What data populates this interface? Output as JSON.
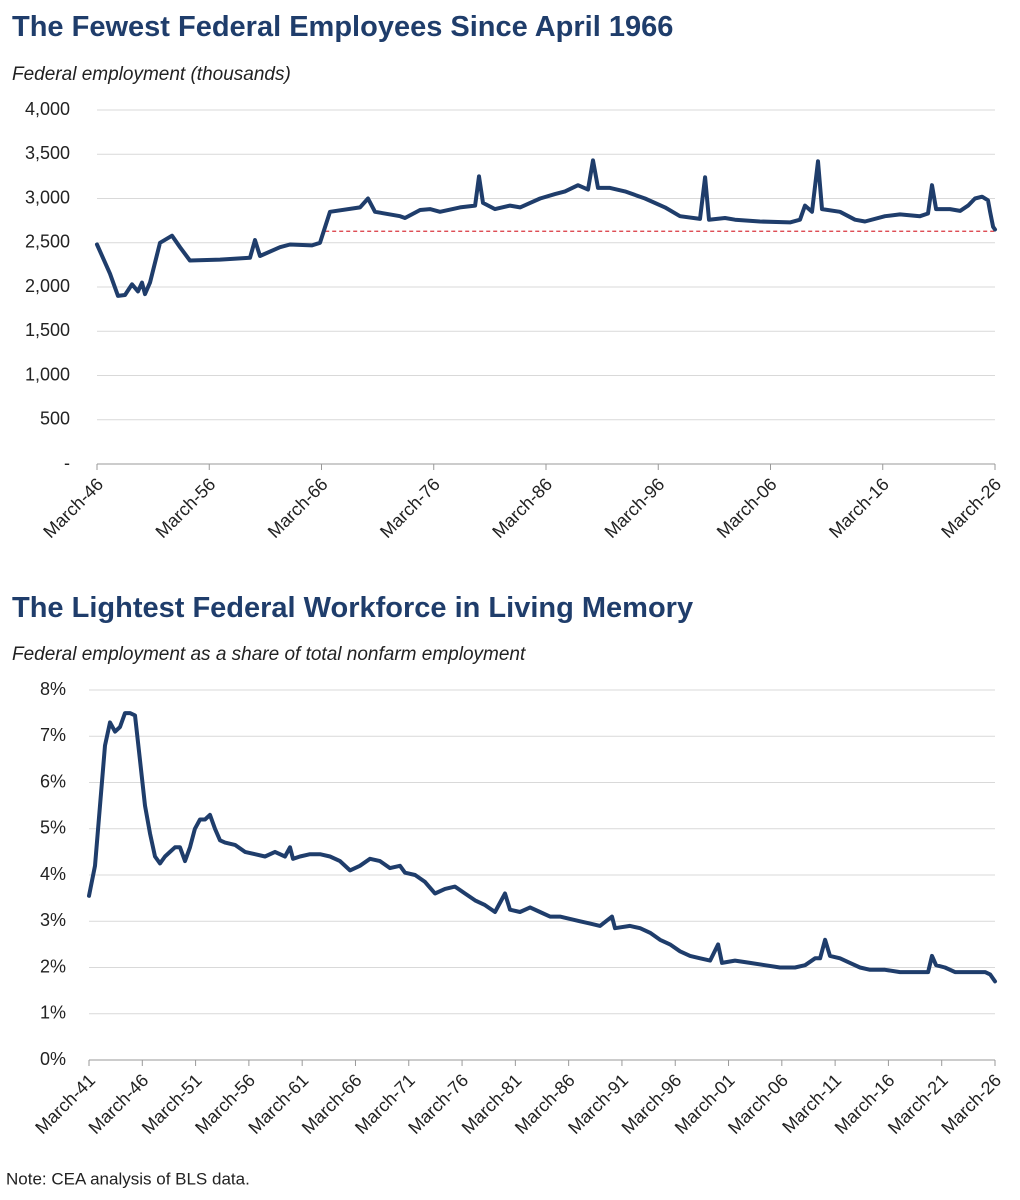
{
  "chart_data": [
    {
      "type": "line",
      "title": "The Fewest Federal Employees Since April 1966",
      "subtitle": "Federal employment (thousands)",
      "color": "#1f3d6b",
      "grid": true,
      "xlim": [
        1946.17,
        2026.17
      ],
      "xticks": [
        {
          "value": 1946.17,
          "label": "March-46"
        },
        {
          "value": 1956.17,
          "label": "March-56"
        },
        {
          "value": 1966.17,
          "label": "March-66"
        },
        {
          "value": 1976.17,
          "label": "March-76"
        },
        {
          "value": 1986.17,
          "label": "March-86"
        },
        {
          "value": 1996.17,
          "label": "March-96"
        },
        {
          "value": 2006.17,
          "label": "March-06"
        },
        {
          "value": 2016.17,
          "label": "March-16"
        },
        {
          "value": 2026.17,
          "label": "March-26"
        }
      ],
      "ylim": [
        0,
        4000
      ],
      "yticks": [
        {
          "value": 0,
          "label": "-"
        },
        500,
        {
          "value": 1000,
          "label": "1,000"
        },
        {
          "value": 1500,
          "label": "1,500"
        },
        {
          "value": 2000,
          "label": "2,000"
        },
        {
          "value": 2500,
          "label": "2,500"
        },
        {
          "value": 3000,
          "label": "3,000"
        },
        {
          "value": 3500,
          "label": "3,500"
        },
        {
          "value": 4000,
          "label": "4,000"
        }
      ],
      "reference_line": {
        "value": 2630,
        "x": [
          1966.5,
          2026.17
        ],
        "color": "#d9363e",
        "dashed": true
      },
      "x": [
        1946.17,
        1947.33,
        1948.04,
        1948.66,
        1949.29,
        1949.82,
        1950.18,
        1950.45,
        1950.89,
        1951.78,
        1952.85,
        1953.56,
        1954.45,
        1957.13,
        1959.8,
        1960.25,
        1960.69,
        1962.47,
        1963.36,
        1965.32,
        1966.04,
        1966.93,
        1969.6,
        1970.31,
        1970.94,
        1973.17,
        1973.61,
        1974.95,
        1975.84,
        1976.73,
        1978.51,
        1979.85,
        1980.2,
        1980.56,
        1981.63,
        1982.96,
        1983.86,
        1984.75,
        1985.64,
        1986.97,
        1987.86,
        1989.02,
        1989.91,
        1990.36,
        1990.8,
        1991.87,
        1993.21,
        1994.99,
        1996.77,
        1998.11,
        1999.89,
        2000.34,
        2000.69,
        2002.12,
        2003.01,
        2005.23,
        2007.91,
        2008.8,
        2009.24,
        2009.87,
        2010.4,
        2010.76,
        2012.36,
        2013.7,
        2014.59,
        2016.37,
        2017.71,
        2019.49,
        2020.2,
        2020.56,
        2020.92,
        2022.16,
        2023.06,
        2023.77,
        2024.39,
        2025.02,
        2025.55,
        2025.73,
        2026.0,
        2026.17
      ],
      "values": [
        2480,
        2150,
        1900,
        1910,
        2030,
        1950,
        2050,
        1920,
        2050,
        2500,
        2580,
        2450,
        2300,
        2310,
        2330,
        2530,
        2350,
        2450,
        2480,
        2470,
        2500,
        2850,
        2900,
        3000,
        2850,
        2800,
        2780,
        2870,
        2880,
        2850,
        2900,
        2920,
        3250,
        2950,
        2880,
        2920,
        2900,
        2950,
        3000,
        3050,
        3080,
        3150,
        3100,
        3430,
        3120,
        3120,
        3080,
        3000,
        2900,
        2800,
        2770,
        3240,
        2760,
        2780,
        2760,
        2740,
        2730,
        2760,
        2920,
        2850,
        3420,
        2880,
        2850,
        2760,
        2740,
        2800,
        2820,
        2800,
        2830,
        3150,
        2880,
        2880,
        2860,
        2920,
        3000,
        3020,
        2980,
        2850,
        2680,
        2650
      ]
    },
    {
      "type": "line",
      "title": "The Lightest Federal Workforce in Living Memory",
      "subtitle": "Federal employment as a share of total nonfarm employment",
      "color": "#1f3d6b",
      "grid": true,
      "xlim": [
        1941.17,
        2026.17
      ],
      "xticks": [
        {
          "value": 1941.17,
          "label": "March-41"
        },
        {
          "value": 1946.17,
          "label": "March-46"
        },
        {
          "value": 1951.17,
          "label": "March-51"
        },
        {
          "value": 1956.17,
          "label": "March-56"
        },
        {
          "value": 1961.17,
          "label": "March-61"
        },
        {
          "value": 1966.17,
          "label": "March-66"
        },
        {
          "value": 1971.17,
          "label": "March-71"
        },
        {
          "value": 1976.17,
          "label": "March-76"
        },
        {
          "value": 1981.17,
          "label": "March-81"
        },
        {
          "value": 1986.17,
          "label": "March-86"
        },
        {
          "value": 1991.17,
          "label": "March-91"
        },
        {
          "value": 1996.17,
          "label": "March-96"
        },
        {
          "value": 2001.17,
          "label": "March-01"
        },
        {
          "value": 2006.17,
          "label": "March-06"
        },
        {
          "value": 2011.17,
          "label": "March-11"
        },
        {
          "value": 2016.17,
          "label": "March-16"
        },
        {
          "value": 2021.17,
          "label": "March-21"
        },
        {
          "value": 2026.17,
          "label": "March-26"
        }
      ],
      "ylim": [
        0,
        8
      ],
      "yticks": [
        {
          "value": 0,
          "label": "0%"
        },
        {
          "value": 1,
          "label": "1%"
        },
        {
          "value": 2,
          "label": "2%"
        },
        {
          "value": 3,
          "label": "3%"
        },
        {
          "value": 4,
          "label": "4%"
        },
        {
          "value": 5,
          "label": "5%"
        },
        {
          "value": 6,
          "label": "6%"
        },
        {
          "value": 7,
          "label": "7%"
        },
        {
          "value": 8,
          "label": "8%"
        }
      ],
      "x": [
        1941.17,
        1941.73,
        1942.2,
        1942.67,
        1943.14,
        1943.61,
        1944.08,
        1944.55,
        1945.02,
        1945.49,
        1945.95,
        1946.42,
        1946.89,
        1947.36,
        1947.83,
        1948.3,
        1948.77,
        1949.24,
        1949.71,
        1950.18,
        1950.65,
        1951.11,
        1951.58,
        1952.05,
        1952.52,
        1952.99,
        1953.46,
        1953.93,
        1954.87,
        1955.81,
        1956.74,
        1957.68,
        1958.62,
        1959.56,
        1960.03,
        1960.31,
        1960.97,
        1961.9,
        1962.84,
        1963.78,
        1964.72,
        1965.66,
        1966.59,
        1967.53,
        1968.47,
        1969.41,
        1970.35,
        1970.82,
        1971.76,
        1972.69,
        1973.63,
        1974.57,
        1975.51,
        1976.45,
        1977.39,
        1978.32,
        1979.26,
        1980.2,
        1980.67,
        1981.61,
        1982.55,
        1983.48,
        1984.42,
        1985.36,
        1986.3,
        1987.24,
        1988.18,
        1989.11,
        1990.24,
        1990.52,
        1991.93,
        1992.87,
        1993.81,
        1994.74,
        1995.68,
        1996.62,
        1997.56,
        1998.5,
        1999.44,
        2000.19,
        2000.56,
        2001.78,
        2003.19,
        2004.59,
        2006.0,
        2007.41,
        2008.35,
        2009.29,
        2009.76,
        2010.23,
        2010.69,
        2011.63,
        2012.57,
        2013.5,
        2014.44,
        2015.85,
        2017.26,
        2018.67,
        2019.89,
        2020.26,
        2020.64,
        2021.48,
        2022.42,
        2023.83,
        2025.24,
        2025.71,
        2026.17
      ],
      "values": [
        3.55,
        4.2,
        5.5,
        6.8,
        7.3,
        7.1,
        7.2,
        7.5,
        7.5,
        7.45,
        6.5,
        5.5,
        4.9,
        4.4,
        4.25,
        4.4,
        4.5,
        4.6,
        4.6,
        4.3,
        4.6,
        5.0,
        5.2,
        5.2,
        5.3,
        5.0,
        4.75,
        4.7,
        4.65,
        4.5,
        4.45,
        4.4,
        4.5,
        4.4,
        4.6,
        4.35,
        4.4,
        4.45,
        4.45,
        4.4,
        4.3,
        4.1,
        4.2,
        4.35,
        4.3,
        4.15,
        4.2,
        4.05,
        4.0,
        3.85,
        3.6,
        3.7,
        3.75,
        3.6,
        3.45,
        3.35,
        3.2,
        3.6,
        3.25,
        3.2,
        3.3,
        3.2,
        3.1,
        3.1,
        3.05,
        3.0,
        2.95,
        2.9,
        3.1,
        2.85,
        2.9,
        2.85,
        2.75,
        2.6,
        2.5,
        2.35,
        2.25,
        2.2,
        2.15,
        2.5,
        2.1,
        2.15,
        2.1,
        2.05,
        2.0,
        2.0,
        2.05,
        2.2,
        2.2,
        2.6,
        2.25,
        2.2,
        2.1,
        2.0,
        1.95,
        1.95,
        1.9,
        1.9,
        1.9,
        2.25,
        2.05,
        2.0,
        1.9,
        1.9,
        1.9,
        1.85,
        1.7
      ]
    }
  ],
  "note": "Note: CEA analysis of BLS data."
}
